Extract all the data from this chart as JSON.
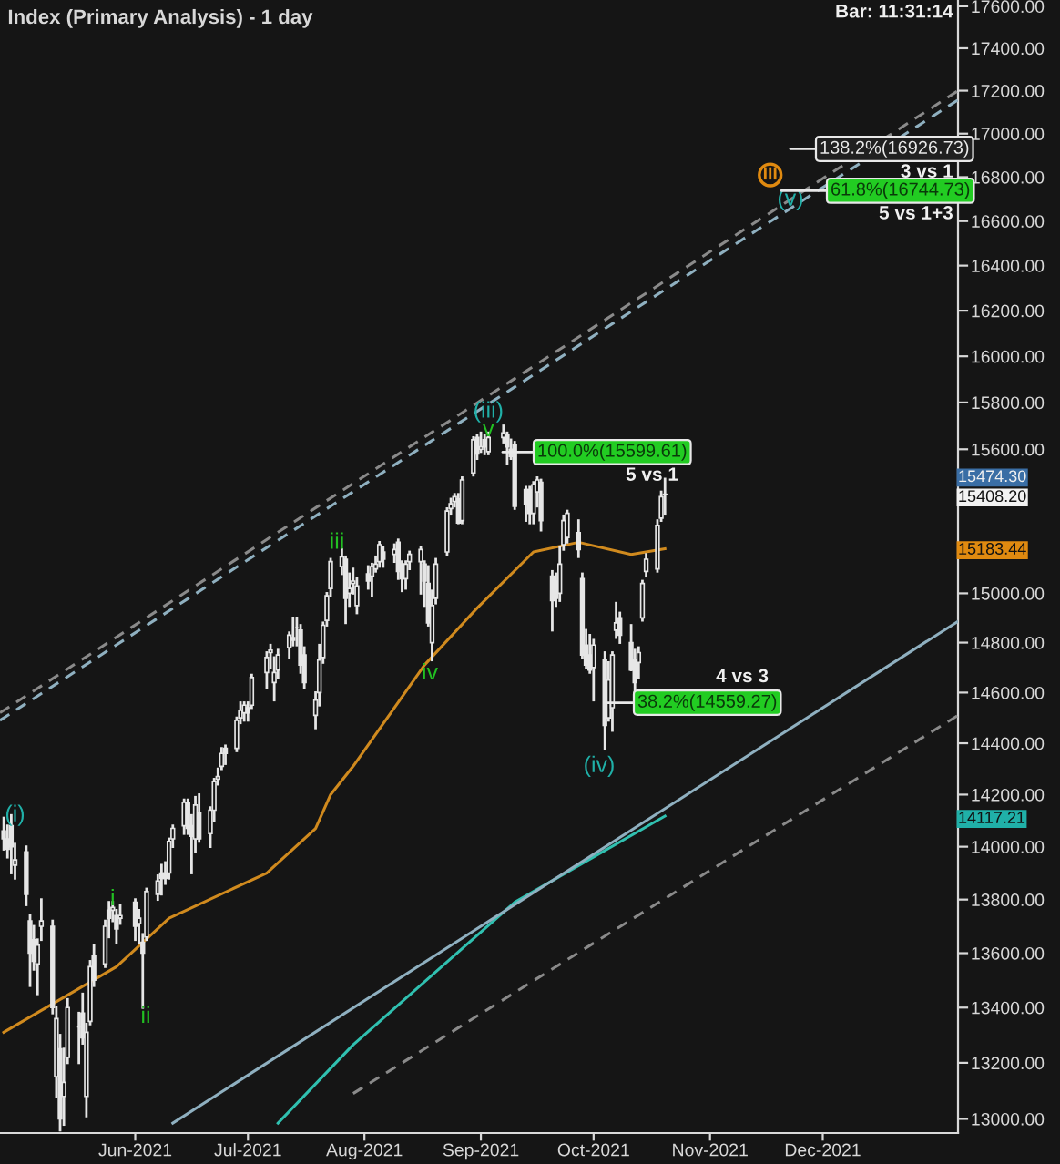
{
  "chart_data": {
    "type": "candlestick",
    "title": "Index (Primary Analysis) - 1 day",
    "color": "#e6e6e6",
    "log": true,
    "x": [
      "2021-04-27",
      "2021-04-28",
      "2021-04-29",
      "2021-04-30",
      "2021-05-03",
      "2021-05-04",
      "2021-05-05",
      "2021-05-06",
      "2021-05-07",
      "2021-05-10",
      "2021-05-11",
      "2021-05-12",
      "2021-05-13",
      "2021-05-14",
      "2021-05-17",
      "2021-05-18",
      "2021-05-19",
      "2021-05-20",
      "2021-05-21",
      "2021-05-24",
      "2021-05-25",
      "2021-05-26",
      "2021-05-27",
      "2021-05-28",
      "2021-06-01",
      "2021-06-02",
      "2021-06-03",
      "2021-06-04",
      "2021-06-07",
      "2021-06-08",
      "2021-06-09",
      "2021-06-10",
      "2021-06-11",
      "2021-06-14",
      "2021-06-15",
      "2021-06-16",
      "2021-06-17",
      "2021-06-18",
      "2021-06-21",
      "2021-06-22",
      "2021-06-23",
      "2021-06-24",
      "2021-06-25",
      "2021-06-28",
      "2021-06-29",
      "2021-06-30",
      "2021-07-01",
      "2021-07-02",
      "2021-07-06",
      "2021-07-07",
      "2021-07-08",
      "2021-07-09",
      "2021-07-12",
      "2021-07-13",
      "2021-07-14",
      "2021-07-15",
      "2021-07-16",
      "2021-07-19",
      "2021-07-20",
      "2021-07-21",
      "2021-07-22",
      "2021-07-23",
      "2021-07-26",
      "2021-07-27",
      "2021-07-28",
      "2021-07-29",
      "2021-07-30",
      "2021-08-02",
      "2021-08-03",
      "2021-08-04",
      "2021-08-05",
      "2021-08-06",
      "2021-08-09",
      "2021-08-10",
      "2021-08-11",
      "2021-08-12",
      "2021-08-13",
      "2021-08-16",
      "2021-08-17",
      "2021-08-18",
      "2021-08-19",
      "2021-08-20",
      "2021-08-23",
      "2021-08-24",
      "2021-08-25",
      "2021-08-26",
      "2021-08-27",
      "2021-08-30",
      "2021-08-31",
      "2021-09-01",
      "2021-09-02",
      "2021-09-03",
      "2021-09-07",
      "2021-09-08",
      "2021-09-09",
      "2021-09-10",
      "2021-09-13",
      "2021-09-14",
      "2021-09-15",
      "2021-09-16",
      "2021-09-17",
      "2021-09-20",
      "2021-09-21",
      "2021-09-22",
      "2021-09-23",
      "2021-09-24",
      "2021-09-27",
      "2021-09-28",
      "2021-09-29",
      "2021-09-30",
      "2021-10-01",
      "2021-10-04",
      "2021-10-05",
      "2021-10-06",
      "2021-10-07",
      "2021-10-08",
      "2021-10-11",
      "2021-10-12",
      "2021-10-13",
      "2021-10-14",
      "2021-10-15",
      "2021-10-18",
      "2021-10-19",
      "2021-10-20"
    ],
    "ohlc": [
      [
        14060,
        14110,
        13990,
        14030
      ],
      [
        14030,
        14080,
        13960,
        13990
      ],
      [
        14080,
        14120,
        13900,
        14000
      ],
      [
        13930,
        14010,
        13880,
        13950
      ],
      [
        13980,
        14000,
        13780,
        13820
      ],
      [
        13720,
        13740,
        13480,
        13600
      ],
      [
        13650,
        13700,
        13540,
        13570
      ],
      [
        13560,
        13650,
        13450,
        13630
      ],
      [
        13700,
        13800,
        13650,
        13720
      ],
      [
        13700,
        13720,
        13380,
        13400
      ],
      [
        13150,
        13400,
        13080,
        13360
      ],
      [
        13250,
        13300,
        12960,
        13000
      ],
      [
        13080,
        13250,
        12980,
        13130
      ],
      [
        13220,
        13430,
        13200,
        13400
      ],
      [
        13330,
        13380,
        13200,
        13330
      ],
      [
        13380,
        13450,
        13270,
        13290
      ],
      [
        13080,
        13340,
        13010,
        13310
      ],
      [
        13350,
        13570,
        13340,
        13550
      ],
      [
        13590,
        13630,
        13480,
        13500
      ],
      [
        13560,
        13720,
        13550,
        13700
      ],
      [
        13760,
        13790,
        13660,
        13730
      ],
      [
        13760,
        13790,
        13720,
        13770
      ],
      [
        13740,
        13760,
        13640,
        13690
      ],
      [
        13730,
        13780,
        13710,
        13740
      ],
      [
        13790,
        13800,
        13650,
        13700
      ],
      [
        13710,
        13760,
        13640,
        13730
      ],
      [
        13640,
        13670,
        13400,
        13600
      ],
      [
        13660,
        13840,
        13650,
        13830
      ],
      [
        13820,
        13890,
        13800,
        13870
      ],
      [
        13900,
        13930,
        13820,
        13880
      ],
      [
        13900,
        13940,
        13860,
        13880
      ],
      [
        13900,
        14030,
        13880,
        14020
      ],
      [
        14030,
        14080,
        14000,
        14070
      ],
      [
        14080,
        14180,
        14050,
        14170
      ],
      [
        14170,
        14180,
        14050,
        14070
      ],
      [
        14080,
        14120,
        13900,
        14040
      ],
      [
        14030,
        14190,
        13980,
        14160
      ],
      [
        14130,
        14200,
        14020,
        14030
      ],
      [
        14050,
        14150,
        14000,
        14140
      ],
      [
        14140,
        14260,
        14100,
        14250
      ],
      [
        14260,
        14300,
        14240,
        14270
      ],
      [
        14310,
        14380,
        14300,
        14360
      ],
      [
        14380,
        14390,
        14320,
        14360
      ],
      [
        14380,
        14500,
        14370,
        14490
      ],
      [
        14500,
        14560,
        14480,
        14530
      ],
      [
        14520,
        14560,
        14490,
        14550
      ],
      [
        14540,
        14560,
        14490,
        14520
      ],
      [
        14550,
        14670,
        14540,
        14660
      ],
      [
        14680,
        14760,
        14620,
        14740
      ],
      [
        14760,
        14790,
        14700,
        14770
      ],
      [
        14640,
        14740,
        14570,
        14680
      ],
      [
        14690,
        14770,
        14660,
        14750
      ],
      [
        14780,
        14840,
        14740,
        14830
      ],
      [
        14820,
        14900,
        14790,
        14810
      ],
      [
        14860,
        14900,
        14790,
        14860
      ],
      [
        14850,
        14870,
        14680,
        14710
      ],
      [
        14750,
        14780,
        14620,
        14640
      ],
      [
        14510,
        14600,
        14460,
        14570
      ],
      [
        14600,
        14790,
        14550,
        14730
      ],
      [
        14740,
        14880,
        14720,
        14870
      ],
      [
        14890,
        15000,
        14870,
        14990
      ],
      [
        15020,
        15140,
        14990,
        15130
      ],
      [
        15110,
        15180,
        15080,
        15150
      ],
      [
        15140,
        15150,
        14880,
        14980
      ],
      [
        15000,
        15080,
        14950,
        15020
      ],
      [
        15040,
        15100,
        15000,
        15050
      ],
      [
        14950,
        15060,
        14920,
        15030
      ],
      [
        15080,
        15110,
        15020,
        15050
      ],
      [
        15070,
        15120,
        14990,
        15110
      ],
      [
        15100,
        15150,
        15090,
        15120
      ],
      [
        15130,
        15210,
        15110,
        15200
      ],
      [
        15170,
        15190,
        15110,
        15140
      ],
      [
        15160,
        15200,
        15130,
        15180
      ],
      [
        15210,
        15220,
        15060,
        15090
      ],
      [
        15120,
        15130,
        15010,
        15060
      ],
      [
        15060,
        15130,
        15020,
        15120
      ],
      [
        15130,
        15170,
        15100,
        15160
      ],
      [
        15130,
        15190,
        15000,
        15180
      ],
      [
        15120,
        15130,
        14950,
        15050
      ],
      [
        15040,
        15110,
        14870,
        14880
      ],
      [
        14800,
        15010,
        14730,
        14950
      ],
      [
        14980,
        15140,
        14960,
        15120
      ],
      [
        15170,
        15350,
        15160,
        15340
      ],
      [
        15350,
        15390,
        15330,
        15370
      ],
      [
        15380,
        15410,
        15360,
        15400
      ],
      [
        15390,
        15410,
        15290,
        15290
      ],
      [
        15300,
        15480,
        15290,
        15470
      ],
      [
        15500,
        15650,
        15490,
        15640
      ],
      [
        15650,
        15660,
        15560,
        15580
      ],
      [
        15600,
        15670,
        15590,
        15610
      ],
      [
        15640,
        15660,
        15580,
        15610
      ],
      [
        15590,
        15670,
        15580,
        15650
      ],
      [
        15650,
        15700,
        15630,
        15670
      ],
      [
        15660,
        15670,
        15540,
        15610
      ],
      [
        15600,
        15640,
        15560,
        15570
      ],
      [
        15620,
        15630,
        15350,
        15360
      ],
      [
        15430,
        15440,
        15300,
        15370
      ],
      [
        15430,
        15440,
        15290,
        15330
      ],
      [
        15330,
        15460,
        15290,
        15450
      ],
      [
        15420,
        15480,
        15360,
        15470
      ],
      [
        15460,
        15470,
        15260,
        15300
      ],
      [
        15070,
        15090,
        14850,
        14970
      ],
      [
        15050,
        15080,
        14950,
        14980
      ],
      [
        15000,
        15190,
        14970,
        15120
      ],
      [
        15200,
        15320,
        15180,
        15300
      ],
      [
        15230,
        15340,
        15210,
        15330
      ],
      [
        15250,
        15300,
        15150,
        15180
      ],
      [
        15060,
        15080,
        14740,
        14750
      ],
      [
        14790,
        14850,
        14700,
        14710
      ],
      [
        14750,
        14830,
        14680,
        14690
      ],
      [
        14700,
        14810,
        14570,
        14790
      ],
      [
        14730,
        14760,
        14380,
        14470
      ],
      [
        14500,
        14720,
        14490,
        14650
      ],
      [
        14540,
        14760,
        14450,
        14750
      ],
      [
        14850,
        14960,
        14820,
        14880
      ],
      [
        14900,
        14920,
        14800,
        14830
      ],
      [
        14800,
        14870,
        14690,
        14690
      ],
      [
        14730,
        14770,
        14600,
        14640
      ],
      [
        14720,
        14780,
        14660,
        14760
      ],
      [
        14900,
        15050,
        14890,
        15040
      ],
      [
        15090,
        15160,
        15070,
        15140
      ],
      [
        15100,
        15300,
        15090,
        15280
      ],
      [
        15310,
        15420,
        15300,
        15400
      ],
      [
        15410,
        15474.3,
        15330,
        15408.2
      ]
    ],
    "series": [
      {
        "type": "line",
        "color": "#d08a1e",
        "x": [
          "2021-04-27",
          "2021-05-27",
          "2021-06-10",
          "2021-07-06",
          "2021-07-19",
          "2021-07-23",
          "2021-07-29",
          "2021-08-17",
          "2021-08-31",
          "2021-09-15",
          "2021-09-27",
          "2021-10-11",
          "2021-10-20"
        ],
        "values": [
          13310,
          13550,
          13730,
          13900,
          14070,
          14200,
          14310,
          14710,
          14940,
          15170,
          15210,
          15160,
          15183.44
        ]
      },
      {
        "type": "line",
        "color": "#30c0b0",
        "x": [
          "2021-07-09",
          "2021-07-29",
          "2021-09-10",
          "2021-10-20"
        ],
        "values": [
          12985,
          13265,
          13790,
          14117.21
        ]
      },
      {
        "type": "line",
        "color": "#8fb0c0",
        "line_style": "dashed",
        "x": [
          "2021-04-26",
          "2022-01-06"
        ],
        "values": [
          14490,
          17157
        ]
      },
      {
        "type": "line",
        "color": "#8a8a8a",
        "line_style": "dashed",
        "x": [
          "2021-04-26",
          "2022-01-06"
        ],
        "values": [
          14520,
          17200
        ]
      },
      {
        "type": "line",
        "color": "#8fb0c0",
        "line_style": "solid",
        "x": [
          "2021-06-11",
          "2022-01-06"
        ],
        "values": [
          12985,
          14886
        ]
      },
      {
        "type": "line",
        "color": "#8a8a8a",
        "line_style": "dashed",
        "x": [
          "2021-07-29",
          "2022-01-06"
        ],
        "values": [
          13090,
          14510
        ]
      }
    ],
    "xlim": [
      "2021-04-26",
      "2022-01-06"
    ],
    "xticks": [
      {
        "value": "2021-06-01",
        "label": "Jun-2021"
      },
      {
        "value": "2021-07-01",
        "label": "Jul-2021"
      },
      {
        "value": "2021-08-01",
        "label": "Aug-2021"
      },
      {
        "value": "2021-09-01",
        "label": "Sep-2021"
      },
      {
        "value": "2021-10-01",
        "label": "Oct-2021"
      },
      {
        "value": "2021-11-01",
        "label": "Nov-2021"
      },
      {
        "value": "2021-12-01",
        "label": "Dec-2021"
      }
    ],
    "ylim": [
      12950,
      17630
    ],
    "yticks": [
      {
        "value": 13000,
        "label": "13000.00"
      },
      {
        "value": 13200,
        "label": "13200.00"
      },
      {
        "value": 13400,
        "label": "13400.00"
      },
      {
        "value": 13600,
        "label": "13600.00"
      },
      {
        "value": 13800,
        "label": "13800.00"
      },
      {
        "value": 14000,
        "label": "14000.00"
      },
      {
        "value": 14200,
        "label": "14200.00"
      },
      {
        "value": 14400,
        "label": "14400.00"
      },
      {
        "value": 14600,
        "label": "14600.00"
      },
      {
        "value": 14800,
        "label": "14800.00"
      },
      {
        "value": 15000,
        "label": "15000.00"
      },
      {
        "value": 15200,
        "label": null
      },
      {
        "value": 15400,
        "label": null
      },
      {
        "value": 15600,
        "label": "15600.00"
      },
      {
        "value": 15800,
        "label": "15800.00"
      },
      {
        "value": 16000,
        "label": "16000.00"
      },
      {
        "value": 16200,
        "label": "16200.00"
      },
      {
        "value": 16400,
        "label": "16400.00"
      },
      {
        "value": 16600,
        "label": "16600.00"
      },
      {
        "value": 16800,
        "label": "16800.00"
      },
      {
        "value": 17000,
        "label": "17000.00"
      },
      {
        "value": 17200,
        "label": "17200.00"
      },
      {
        "value": 17400,
        "label": "17400.00"
      },
      {
        "value": 17600,
        "label": "17600.00"
      }
    ],
    "annotations": [
      {
        "text": "(i)",
        "x": "2021-04-30",
        "y": 14120
      },
      {
        "text": "i",
        "x": "2021-05-26",
        "y": 13800
      },
      {
        "text": "v",
        "x": "2021-09-03",
        "y": 15680
      },
      {
        "text": "(iii)",
        "x": "2021-09-03",
        "y": 15760
      },
      {
        "text": "III",
        "x": "2021-11-17",
        "y": 16810
      },
      "ii",
      "iv",
      "iii",
      "(iv)",
      "(v)",
      "100.0%(15599.61)",
      "38.2%(14559.27)",
      "61.8%(16744.73)",
      "138.2%(16926.73)",
      "5 vs 1",
      "4 vs 3",
      "3 vs 1",
      "5 vs 1+3",
      "Bar: 11:31:14",
      "15474.30",
      "15408.20",
      "15183.44",
      "14117.21"
    ]
  }
}
